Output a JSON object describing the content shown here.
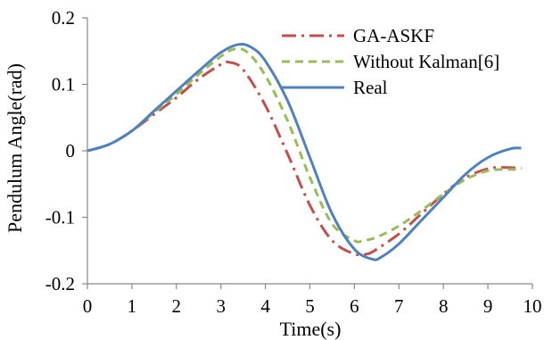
{
  "chart_data": {
    "type": "line",
    "title": "",
    "xlabel": "Time(s)",
    "ylabel": "Pendulum Angle(rad)",
    "xlim": [
      0,
      10
    ],
    "ylim": [
      -0.2,
      0.2
    ],
    "xticks": [
      "0",
      "1",
      "2",
      "3",
      "4",
      "5",
      "6",
      "7",
      "8",
      "9",
      "10"
    ],
    "yticks": [
      "0.2",
      "0.1",
      "0",
      "-0.1",
      "-0.2"
    ],
    "grid": false,
    "legend": "top-right",
    "series": [
      {
        "name": "GA-ASKF",
        "style": "dash-dot",
        "color": "#c0504d",
        "x": [
          0,
          0.5,
          1,
          1.5,
          2,
          2.5,
          3,
          3.2,
          3.5,
          4,
          4.5,
          5,
          5.5,
          6,
          6.3,
          6.5,
          7,
          7.5,
          8,
          8.5,
          9,
          9.3,
          9.75
        ],
        "y": [
          0,
          0.01,
          0.03,
          0.055,
          0.08,
          0.108,
          0.13,
          0.133,
          0.122,
          0.068,
          -0.005,
          -0.082,
          -0.135,
          -0.155,
          -0.155,
          -0.148,
          -0.125,
          -0.095,
          -0.065,
          -0.04,
          -0.027,
          -0.025,
          -0.026
        ]
      },
      {
        "name": "Without Kalman[6]",
        "style": "dashed",
        "color": "#9bbb59",
        "x": [
          0,
          0.5,
          1,
          1.5,
          2,
          2.5,
          3,
          3.3,
          3.6,
          4,
          4.5,
          5,
          5.5,
          6,
          6.2,
          6.5,
          7,
          7.5,
          8,
          8.5,
          9,
          9.5,
          9.75
        ],
        "y": [
          0,
          0.01,
          0.03,
          0.058,
          0.085,
          0.115,
          0.142,
          0.153,
          0.148,
          0.113,
          0.045,
          -0.04,
          -0.11,
          -0.135,
          -0.135,
          -0.13,
          -0.113,
          -0.09,
          -0.065,
          -0.043,
          -0.03,
          -0.028,
          -0.029
        ]
      },
      {
        "name": "Real",
        "style": "solid",
        "color": "#4f81bd",
        "x": [
          0,
          0.5,
          1,
          1.5,
          2,
          2.5,
          3,
          3.4,
          3.7,
          4,
          4.5,
          5,
          5.5,
          6,
          6.4,
          6.6,
          7,
          7.5,
          8,
          8.5,
          9,
          9.5,
          9.75
        ],
        "y": [
          0,
          0.01,
          0.03,
          0.06,
          0.09,
          0.12,
          0.148,
          0.16,
          0.155,
          0.135,
          0.075,
          -0.01,
          -0.095,
          -0.148,
          -0.163,
          -0.16,
          -0.14,
          -0.105,
          -0.07,
          -0.035,
          -0.01,
          0.003,
          0.004
        ]
      }
    ]
  }
}
